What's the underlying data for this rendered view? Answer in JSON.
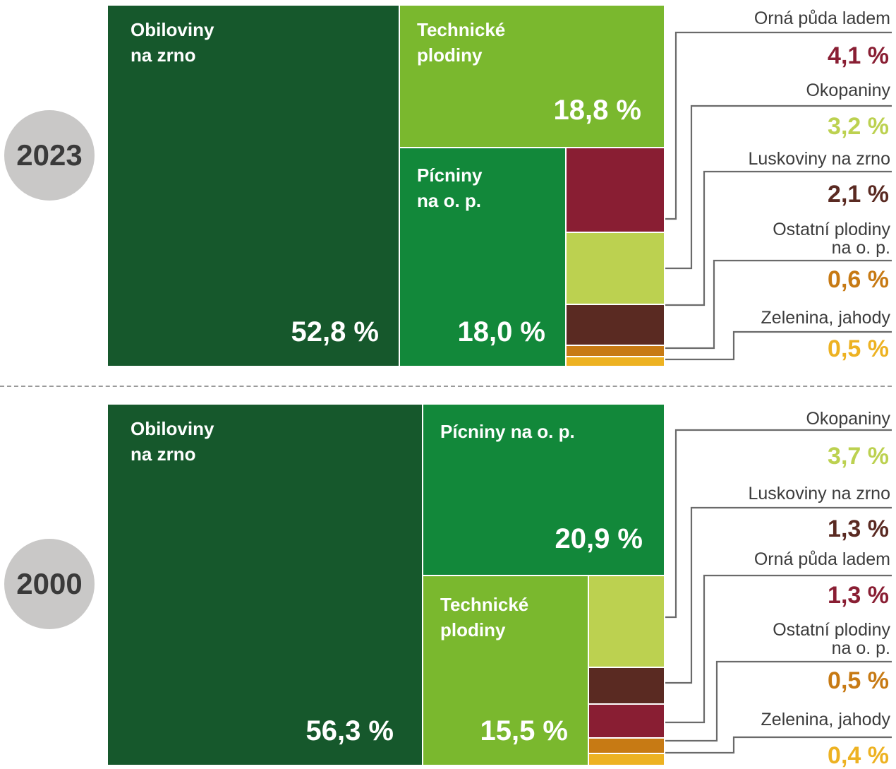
{
  "colors": {
    "obiloviny": "#16582c",
    "picniny": "#12883a",
    "technicke": "#7ab82e",
    "okopaniny": "#bcd150",
    "orna_puda": "#891e33",
    "luskoviny": "#5a2a22",
    "ostatni": "#c77a14",
    "zelenina": "#edb222",
    "label_text": "#3c3c3c",
    "badge": "#c9c8c7"
  },
  "chart_data": [
    {
      "type": "treemap",
      "year": "2023",
      "series": [
        {
          "key": "obiloviny",
          "name": "Obiloviny\nna zrno",
          "value": 52.8,
          "label": "52,8 %"
        },
        {
          "key": "technicke",
          "name": "Technické\nplodiny",
          "value": 18.8,
          "label": "18,8 %"
        },
        {
          "key": "picniny",
          "name": "Pícniny\nna o. p.",
          "value": 18.0,
          "label": "18,0 %"
        },
        {
          "key": "orna_puda",
          "name": "Orná půda ladem",
          "value": 4.1,
          "label": "4,1 %"
        },
        {
          "key": "okopaniny",
          "name": "Okopaniny",
          "value": 3.2,
          "label": "3,2 %"
        },
        {
          "key": "luskoviny",
          "name": "Luskoviny na zrno",
          "value": 2.1,
          "label": "2,1 %"
        },
        {
          "key": "ostatni",
          "name": "Ostatní plodiny\nna o. p.",
          "value": 0.6,
          "label": "0,6 %"
        },
        {
          "key": "zelenina",
          "name": "Zelenina, jahody",
          "value": 0.5,
          "label": "0,5 %"
        }
      ]
    },
    {
      "type": "treemap",
      "year": "2000",
      "series": [
        {
          "key": "obiloviny",
          "name": "Obiloviny\nna zrno",
          "value": 56.3,
          "label": "56,3 %"
        },
        {
          "key": "picniny",
          "name": "Pícniny na o. p.",
          "value": 20.9,
          "label": "20,9 %"
        },
        {
          "key": "technicke",
          "name": "Technické\nplodiny",
          "value": 15.5,
          "label": "15,5 %"
        },
        {
          "key": "okopaniny",
          "name": "Okopaniny",
          "value": 3.7,
          "label": "3,7 %"
        },
        {
          "key": "luskoviny",
          "name": "Luskoviny na zrno",
          "value": 1.3,
          "label": "1,3 %"
        },
        {
          "key": "orna_puda",
          "name": "Orná půda ladem",
          "value": 1.3,
          "label": "1,3 %"
        },
        {
          "key": "ostatni",
          "name": "Ostatní plodiny\nna o. p.",
          "value": 0.5,
          "label": "0,5 %"
        },
        {
          "key": "zelenina",
          "name": "Zelenina, jahody",
          "value": 0.4,
          "label": "0,4 %"
        }
      ]
    }
  ]
}
